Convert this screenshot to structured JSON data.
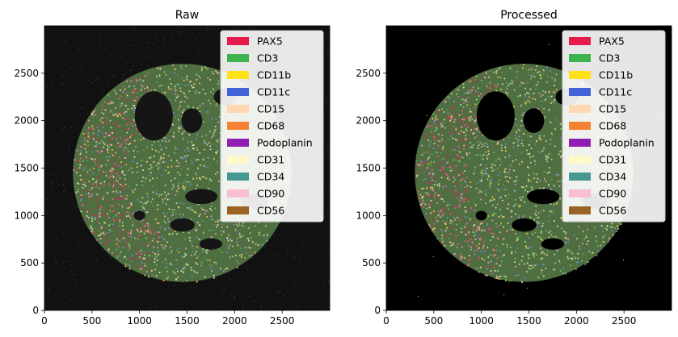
{
  "chart_data": [
    {
      "type": "heatmap",
      "title": "Raw",
      "xlim": [
        0,
        3000
      ],
      "ylim": [
        0,
        3000
      ],
      "xticks": [
        "0",
        "500",
        "1000",
        "1500",
        "2000",
        "2500"
      ],
      "yticks": [
        "0",
        "500",
        "1000",
        "1500",
        "2000",
        "2500"
      ],
      "background": "#111111",
      "noise_level": "high",
      "legend_position": "top-right",
      "legend": [
        {
          "label": "PAX5",
          "color": "#e8194b"
        },
        {
          "label": "CD3",
          "color": "#3cb44b"
        },
        {
          "label": "CD11b",
          "color": "#ffe119"
        },
        {
          "label": "CD11c",
          "color": "#4363d8"
        },
        {
          "label": "CD15",
          "color": "#ffd8b1"
        },
        {
          "label": "CD68",
          "color": "#f58231"
        },
        {
          "label": "Podoplanin",
          "color": "#911eb4"
        },
        {
          "label": "CD31",
          "color": "#fffac8"
        },
        {
          "label": "CD34",
          "color": "#469990"
        },
        {
          "label": "CD90",
          "color": "#fabed4"
        },
        {
          "label": "CD56",
          "color": "#9a6324"
        }
      ]
    },
    {
      "type": "heatmap",
      "title": "Processed",
      "xlim": [
        0,
        3000
      ],
      "ylim": [
        0,
        3000
      ],
      "xticks": [
        "0",
        "500",
        "1000",
        "1500",
        "2000",
        "2500"
      ],
      "yticks": [
        "0",
        "500",
        "1000",
        "1500",
        "2000",
        "2500"
      ],
      "background": "#000000",
      "noise_level": "low",
      "legend_position": "top-right",
      "legend": [
        {
          "label": "PAX5",
          "color": "#e8194b"
        },
        {
          "label": "CD3",
          "color": "#3cb44b"
        },
        {
          "label": "CD11b",
          "color": "#ffe119"
        },
        {
          "label": "CD11c",
          "color": "#4363d8"
        },
        {
          "label": "CD15",
          "color": "#ffd8b1"
        },
        {
          "label": "CD68",
          "color": "#f58231"
        },
        {
          "label": "Podoplanin",
          "color": "#911eb4"
        },
        {
          "label": "CD31",
          "color": "#fffac8"
        },
        {
          "label": "CD34",
          "color": "#469990"
        },
        {
          "label": "CD90",
          "color": "#fabed4"
        },
        {
          "label": "CD56",
          "color": "#9a6324"
        }
      ]
    }
  ]
}
